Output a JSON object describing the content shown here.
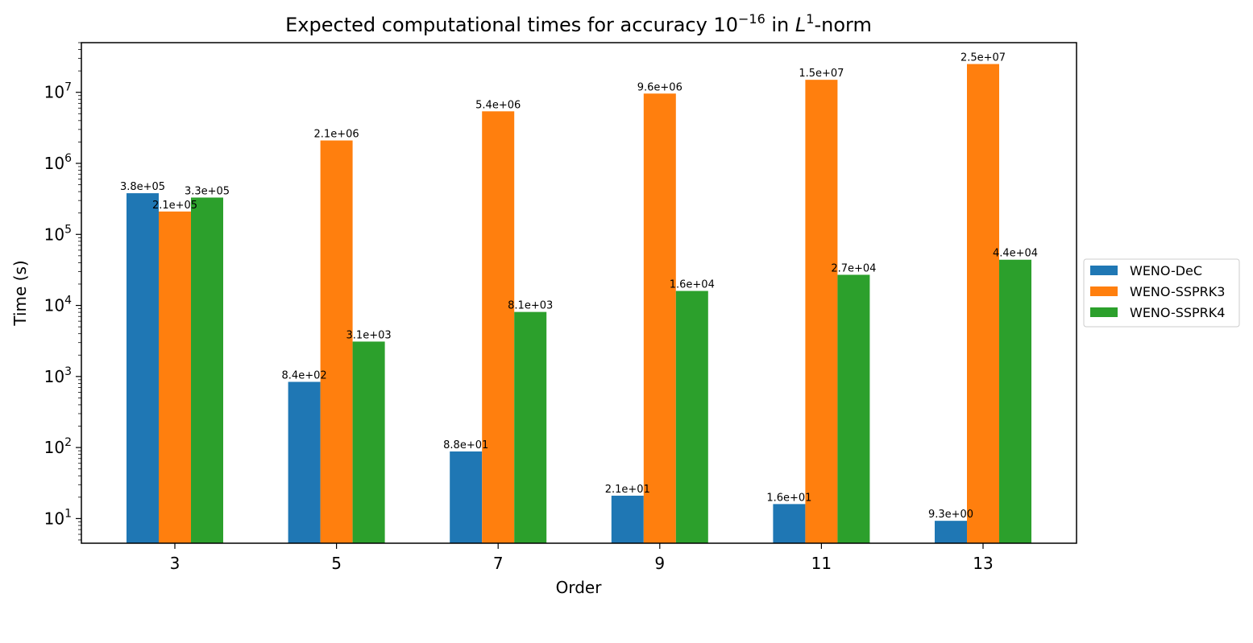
{
  "chart_data": {
    "type": "bar",
    "scale": "log",
    "title": "Expected computational times for accuracy 10",
    "title_exponent": "−16",
    "title_mid": " in ",
    "title_var": "L",
    "title_var_exponent": "1",
    "title_end": "-norm",
    "xlabel": "Order",
    "ylabel": "Time (s)",
    "categories": [
      "3",
      "5",
      "7",
      "9",
      "11",
      "13"
    ],
    "ylim": [
      4.5,
      50000000
    ],
    "yticks": [
      {
        "base": "10",
        "exp": "1",
        "value": 10
      },
      {
        "base": "10",
        "exp": "2",
        "value": 100
      },
      {
        "base": "10",
        "exp": "3",
        "value": 1000
      },
      {
        "base": "10",
        "exp": "4",
        "value": 10000
      },
      {
        "base": "10",
        "exp": "5",
        "value": 100000
      },
      {
        "base": "10",
        "exp": "6",
        "value": 1000000
      },
      {
        "base": "10",
        "exp": "7",
        "value": 10000000
      }
    ],
    "grid": false,
    "legend_position": "right-outside",
    "series": [
      {
        "name": "WENO-DeC",
        "color": "#1f77b4",
        "values": [
          380000,
          840,
          88,
          21,
          16,
          9.3
        ],
        "labels": [
          "3.8e+05",
          "8.4e+02",
          "8.8e+01",
          "2.1e+01",
          "1.6e+01",
          "9.3e+00"
        ]
      },
      {
        "name": "WENO-SSPRK3",
        "color": "#ff7f0e",
        "values": [
          210000,
          2100000,
          5400000,
          9600000,
          15000000,
          25000000
        ],
        "labels": [
          "2.1e+05",
          "2.1e+06",
          "5.4e+06",
          "9.6e+06",
          "1.5e+07",
          "2.5e+07"
        ]
      },
      {
        "name": "WENO-SSPRK4",
        "color": "#2ca02c",
        "values": [
          330000,
          3100,
          8100,
          16000,
          27000,
          44000
        ],
        "labels": [
          "3.3e+05",
          "3.1e+03",
          "8.1e+03",
          "1.6e+04",
          "2.7e+04",
          "4.4e+04"
        ]
      }
    ]
  }
}
